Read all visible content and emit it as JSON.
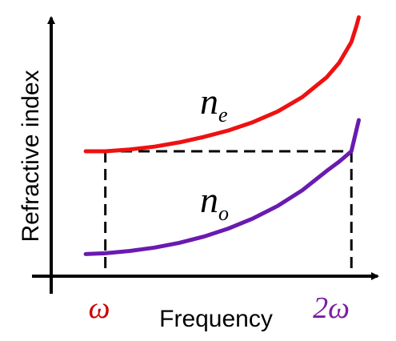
{
  "chart_data": {
    "type": "line",
    "title": "",
    "xlabel": "Frequency",
    "ylabel": "Refractive index",
    "x_ticks": [
      {
        "label": "ω",
        "x": 1,
        "color": "#cc0000"
      },
      {
        "label": "2ω",
        "x": 2,
        "color": "#7b1fa2"
      }
    ],
    "xlim": [
      0.78,
      2.1
    ],
    "ylim": [
      0,
      1
    ],
    "grid": false,
    "series": [
      {
        "name": "n",
        "subscript": "e",
        "color": "#ee1111",
        "x": [
          0.92,
          1.0,
          1.1,
          1.2,
          1.3,
          1.4,
          1.5,
          1.6,
          1.7,
          1.8,
          1.9,
          1.95,
          2.0,
          2.02,
          2.03
        ],
        "y": [
          0.48,
          0.48,
          0.487,
          0.498,
          0.514,
          0.535,
          0.56,
          0.592,
          0.633,
          0.688,
          0.765,
          0.82,
          0.9,
          0.96,
          0.995
        ]
      },
      {
        "name": "n",
        "subscript": "o",
        "color": "#6a1ab0",
        "x": [
          0.92,
          1.0,
          1.1,
          1.2,
          1.3,
          1.4,
          1.5,
          1.6,
          1.7,
          1.8,
          1.9,
          1.95,
          2.0,
          2.03
        ],
        "y": [
          0.085,
          0.088,
          0.097,
          0.11,
          0.128,
          0.152,
          0.183,
          0.222,
          0.27,
          0.33,
          0.405,
          0.44,
          0.48,
          0.6
        ]
      }
    ],
    "guides": [
      {
        "from": [
          0.92,
          0.48
        ],
        "to": [
          2.0,
          0.48
        ]
      },
      {
        "from": [
          1.0,
          0.48
        ],
        "to": [
          1.0,
          0
        ]
      },
      {
        "from": [
          2.0,
          0.48
        ],
        "to": [
          2.0,
          0
        ]
      }
    ]
  }
}
